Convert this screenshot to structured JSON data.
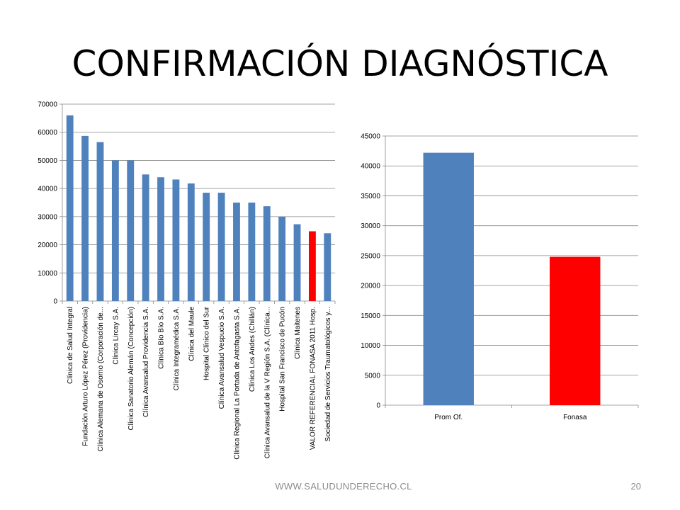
{
  "slide": {
    "title": "CONFIRMACIÓN DIAGNÓSTICA",
    "footer_url": "WWW.SALUDUNDERECHO.CL",
    "page_number": "20"
  },
  "colors": {
    "default_bar": "#4F81BD",
    "highlight_bar": "#FF0000",
    "grid": "#888888",
    "axis": "#888888"
  },
  "chart_data": [
    {
      "type": "bar",
      "title": "",
      "xlabel": "",
      "ylabel": "",
      "ylim": [
        0,
        70000
      ],
      "yticks": [
        0,
        10000,
        20000,
        30000,
        40000,
        50000,
        60000,
        70000
      ],
      "grid": true,
      "categories": [
        "Clínica de Salud Integral",
        "Fundación Arturo López Pérez (Providencia)",
        "Clínica Alemana de Osorno (Corporación de...",
        "Clínica Lircay S.A.",
        "Clínica Sanatorio Alemán (Concepción)",
        "Clínica Avansalud Providencia S.A.",
        "Clínica Bío Bío S.A.",
        "Clínica Integramédica S.A.",
        "Clínica del Maule",
        "Hospital Clínico del Sur",
        "Clínica Avansalud Vespucio S.A.",
        "Clínica Regional La Portada de Antofagasta S.A.",
        "Clínica Los Andes (Chillán)",
        "Clínica Avansalud de la V Región S.A. (Clínica...",
        "Hospital San Francisco de Pucón",
        "Clínica Maitenes",
        "VALOR REFERENCIAL FONASA 2011 Hosp.",
        "Sociedad de Servicios Traumatológicos y..."
      ],
      "values": [
        66000,
        58700,
        56500,
        50000,
        50000,
        45000,
        44000,
        43200,
        41800,
        38500,
        38500,
        35000,
        35000,
        33700,
        30000,
        27300,
        24800,
        24100
      ],
      "highlight_index": 16
    },
    {
      "type": "bar",
      "title": "",
      "xlabel": "",
      "ylabel": "",
      "ylim": [
        0,
        45000
      ],
      "yticks": [
        0,
        5000,
        10000,
        15000,
        20000,
        25000,
        30000,
        35000,
        40000,
        45000
      ],
      "grid": true,
      "categories": [
        "Prom Of.",
        "Fonasa"
      ],
      "values": [
        42200,
        24800
      ],
      "highlight_index": 1
    }
  ]
}
